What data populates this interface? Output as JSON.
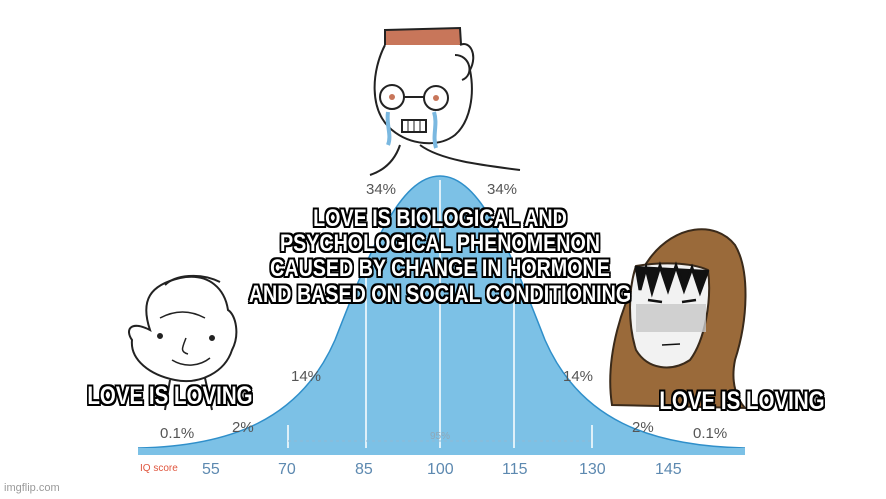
{
  "curve": {
    "percent_labels": [
      "34%",
      "34%",
      "14%",
      "14%",
      "2%",
      "2%",
      "0.1%",
      "0.1%"
    ],
    "band_label": "95%",
    "axis_title": "IQ score",
    "ticks": [
      "55",
      "70",
      "85",
      "100",
      "115",
      "130",
      "145"
    ],
    "fill_color": "#7cc1e6",
    "line_color": "#2f8fca"
  },
  "captions": {
    "center_lines": [
      "LOVE IS BIOLOGICAL AND",
      "PSYCHOLOGICAL PHENOMENON",
      "CAUSED BY CHANGE IN HORMONE",
      "AND BASED ON SOCIAL CONDITIONING"
    ],
    "left": "LOVE IS LOVING",
    "right": "LOVE IS LOVING"
  },
  "watermark": "imgflip.com"
}
